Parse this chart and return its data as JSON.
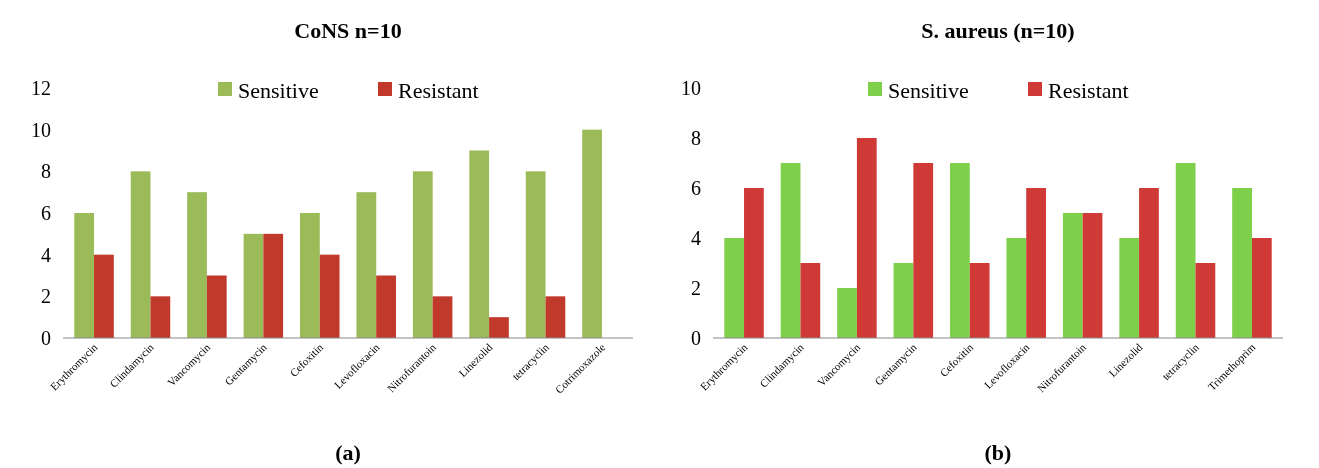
{
  "chart_data": [
    {
      "type": "bar",
      "title": "CoNS n=10",
      "categories": [
        "Erythromycin",
        "Clindamycin",
        "Vancomycin",
        "Gentamycin",
        "Cefoxitin",
        "Levofloxacin",
        "Nitrofurantoin",
        "Linezolid",
        "tetracyclin",
        "Cotrimoxazole"
      ],
      "series": [
        {
          "name": "Sensitive",
          "color": "#9bbb59",
          "values": [
            6,
            8,
            7,
            5,
            6,
            7,
            8,
            9,
            8,
            10
          ]
        },
        {
          "name": "Resistant",
          "color": "#c0392b",
          "values": [
            4,
            2,
            3,
            5,
            4,
            3,
            2,
            1,
            2,
            0
          ]
        }
      ],
      "ylim": [
        0,
        12
      ],
      "yticks": [
        0,
        2,
        4,
        6,
        8,
        10,
        12
      ],
      "legend": "top",
      "annotations": [
        "(a)"
      ]
    },
    {
      "type": "bar",
      "title": "S. aureus (n=10)",
      "categories": [
        "Erythromycin",
        "Clindamycin",
        "Vancomycin",
        "Gentamycin",
        "Cefoxitin",
        "Levofloxacin",
        "Nitrofurantoin",
        "Linezolid",
        "tetracyclin",
        "Trimethoprim"
      ],
      "series": [
        {
          "name": "Sensitive",
          "color": "#7ed04b",
          "values": [
            4,
            7,
            2,
            3,
            7,
            4,
            5,
            4,
            7,
            6
          ]
        },
        {
          "name": "Resistant",
          "color": "#d03a36",
          "values": [
            6,
            3,
            8,
            7,
            3,
            6,
            5,
            6,
            3,
            4
          ]
        }
      ],
      "ylim": [
        0,
        10
      ],
      "yticks": [
        0,
        2,
        4,
        6,
        8,
        10
      ],
      "legend": "top",
      "annotations": [
        "(b)"
      ]
    }
  ]
}
